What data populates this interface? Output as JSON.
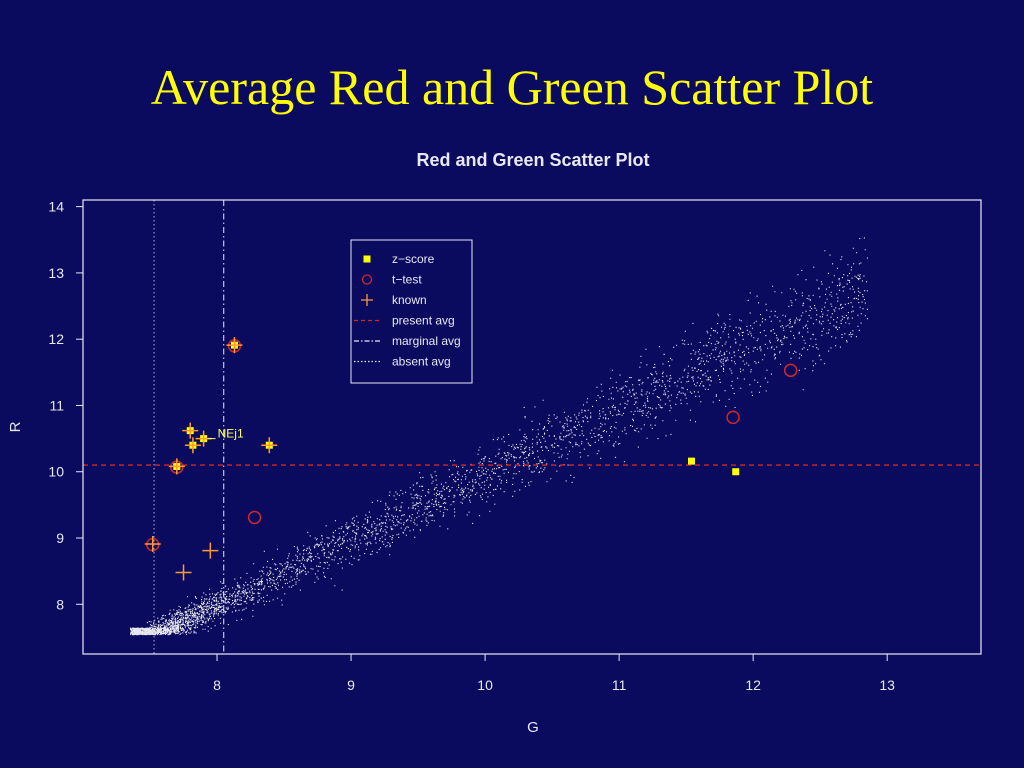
{
  "slide": {
    "title": "Average Red and Green Scatter Plot"
  },
  "colors": {
    "background": "#0a0a5e",
    "slide_title": "#ffff00",
    "zscore": "#ffff00",
    "ttest": "#cc2a2a",
    "known": "#ff9a33",
    "present_avg": "#cc2a2a",
    "marginal_avg": "#e8e8f4",
    "absent_avg": "#b0b0d0",
    "cloud": "#ffffff"
  },
  "chart_data": {
    "type": "scatter",
    "title": "Red and Green Scatter Plot",
    "xlabel": "G",
    "ylabel": "R",
    "xlim": [
      7.0,
      13.7
    ],
    "ylim": [
      7.25,
      14.1
    ],
    "xticks": [
      8,
      9,
      10,
      11,
      12,
      13
    ],
    "yticks": [
      8,
      9,
      10,
      11,
      12,
      13,
      14
    ],
    "grid": false,
    "legend_position": "top-center",
    "legend": [
      {
        "label": "z−score",
        "marker": "square"
      },
      {
        "label": "t−test",
        "marker": "circle"
      },
      {
        "label": "known",
        "marker": "plus"
      },
      {
        "label": "present avg",
        "marker": "dashed-line"
      },
      {
        "label": "marginal avg",
        "marker": "dashdot-line"
      },
      {
        "label": "absent avg",
        "marker": "dotted-line"
      }
    ],
    "reference_lines": {
      "present_avg_R": 10.1,
      "marginal_avg_G": 8.05,
      "absent_avg_G": 7.53
    },
    "cloud": {
      "description_points": "dense cloud of genes along R ≈ G",
      "g_range": [
        7.3,
        13.4
      ],
      "approx_count": 5000
    },
    "series": [
      {
        "name": "z−score",
        "points": [
          {
            "x": 8.13,
            "y": 11.91
          },
          {
            "x": 7.8,
            "y": 10.62
          },
          {
            "x": 7.9,
            "y": 10.5
          },
          {
            "x": 7.82,
            "y": 10.4
          },
          {
            "x": 8.39,
            "y": 10.4
          },
          {
            "x": 7.7,
            "y": 10.08
          },
          {
            "x": 11.54,
            "y": 10.16
          },
          {
            "x": 11.87,
            "y": 10.0
          }
        ]
      },
      {
        "name": "t−test",
        "points": [
          {
            "x": 8.28,
            "y": 9.31
          },
          {
            "x": 11.85,
            "y": 10.82
          },
          {
            "x": 12.28,
            "y": 11.53
          },
          {
            "x": 7.52,
            "y": 8.9
          },
          {
            "x": 8.13,
            "y": 11.9
          },
          {
            "x": 7.7,
            "y": 10.07
          }
        ]
      },
      {
        "name": "known",
        "points": [
          {
            "x": 8.13,
            "y": 11.91
          },
          {
            "x": 7.8,
            "y": 10.62
          },
          {
            "x": 7.9,
            "y": 10.5
          },
          {
            "x": 7.82,
            "y": 10.4
          },
          {
            "x": 8.39,
            "y": 10.4
          },
          {
            "x": 7.7,
            "y": 10.08
          },
          {
            "x": 7.52,
            "y": 8.91
          },
          {
            "x": 7.95,
            "y": 8.81
          },
          {
            "x": 7.75,
            "y": 8.48
          }
        ]
      }
    ],
    "annotations": [
      {
        "text": "NEj1",
        "x": 7.9,
        "y": 10.5
      }
    ]
  }
}
